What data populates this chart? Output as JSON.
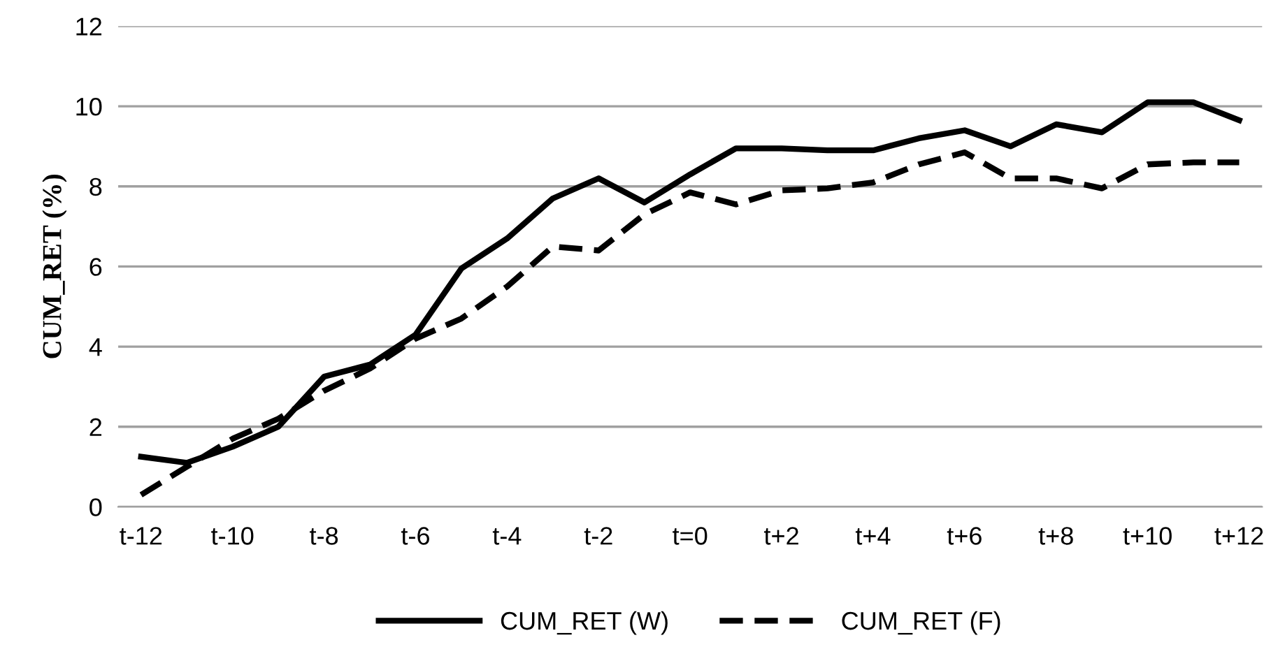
{
  "chart_data": {
    "type": "line",
    "ylabel": "CUM_RET (%)",
    "categories": [
      "t-12",
      null,
      "t-10",
      null,
      "t-8",
      null,
      "t-6",
      null,
      "t-4",
      null,
      "t-2",
      null,
      "t=0",
      null,
      "t+2",
      null,
      "t+4",
      null,
      "t+6",
      null,
      "t+8",
      null,
      "t+10",
      null,
      "t+12"
    ],
    "series": [
      {
        "name": "CUM_RET (W)",
        "color": "#000000",
        "line_style": "solid",
        "values": [
          1.25,
          1.1,
          1.5,
          2.0,
          3.25,
          3.55,
          4.3,
          5.95,
          6.7,
          7.7,
          8.2,
          7.6,
          8.3,
          8.95,
          8.95,
          8.9,
          8.9,
          9.2,
          9.4,
          9.0,
          9.55,
          9.35,
          10.1,
          10.1,
          9.65
        ]
      },
      {
        "name": "CUM_RET (F)",
        "color": "#000000",
        "line_style": "dashed",
        "values": [
          0.3,
          1.0,
          1.7,
          2.2,
          2.9,
          3.45,
          4.2,
          4.7,
          5.5,
          6.5,
          6.4,
          7.3,
          7.85,
          7.55,
          7.9,
          7.95,
          8.1,
          8.55,
          8.85,
          8.2,
          8.2,
          7.95,
          8.55,
          8.6,
          8.6
        ]
      }
    ],
    "ylim": [
      0,
      12
    ],
    "yticks": [
      0,
      2,
      4,
      6,
      8,
      10,
      12
    ],
    "grid": "y",
    "legend": "bottom",
    "marker": "none"
  }
}
